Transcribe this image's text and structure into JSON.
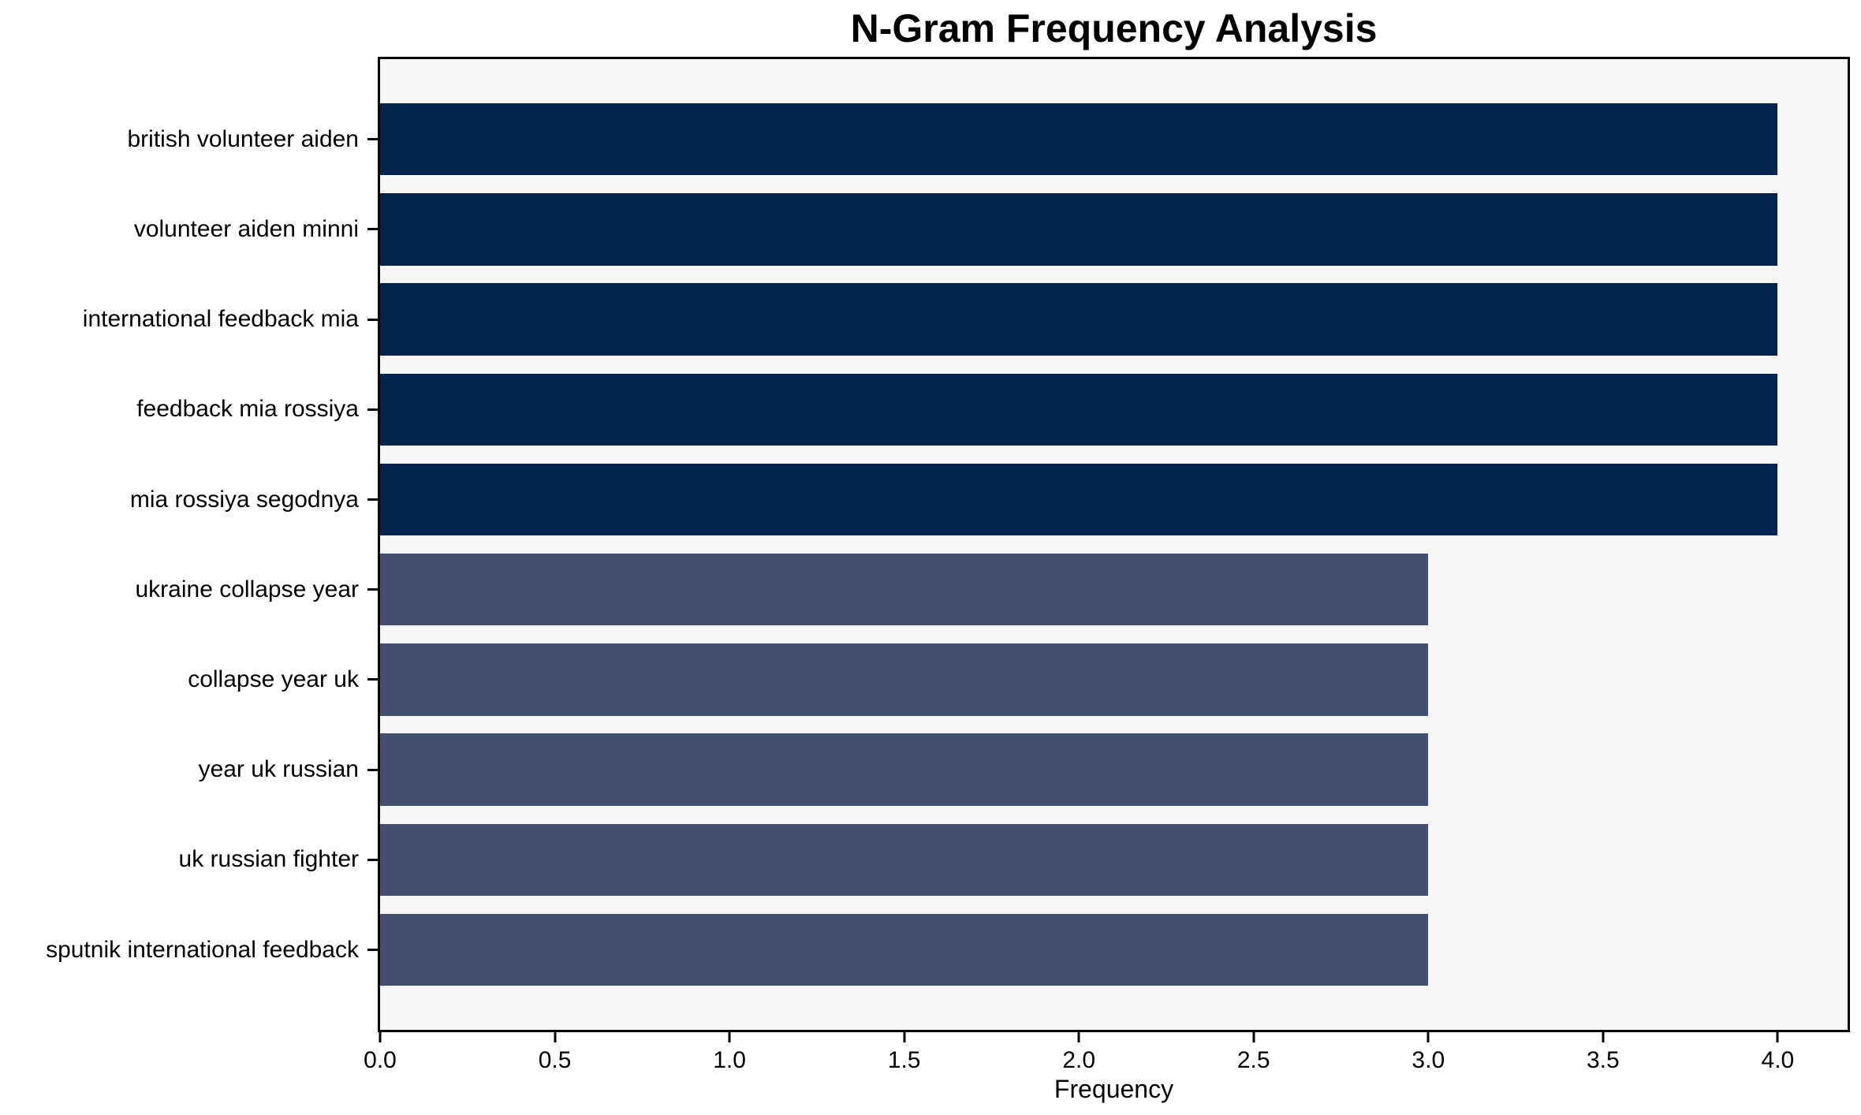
{
  "chart_data": {
    "type": "bar",
    "orientation": "horizontal",
    "title": "N-Gram Frequency Analysis",
    "xlabel": "Frequency",
    "ylabel": "",
    "categories": [
      "british volunteer aiden",
      "volunteer aiden minni",
      "international feedback mia",
      "feedback mia rossiya",
      "mia rossiya segodnya",
      "ukraine collapse year",
      "collapse year uk",
      "year uk russian",
      "uk russian fighter",
      "sputnik international feedback"
    ],
    "values": [
      4,
      4,
      4,
      4,
      4,
      3,
      3,
      3,
      3,
      3
    ],
    "bar_colors": [
      "#03254d",
      "#03254d",
      "#03254d",
      "#03254d",
      "#03254d",
      "#454f6e",
      "#454f6e",
      "#454f6e",
      "#454f6e",
      "#454f6e"
    ],
    "xlim": [
      0,
      4.2
    ],
    "xticks": [
      "0.0",
      "0.5",
      "1.0",
      "1.5",
      "2.0",
      "2.5",
      "3.0",
      "3.5",
      "4.0"
    ],
    "grid": false,
    "legend": null,
    "colors": {
      "bar_high": "#03254d",
      "bar_low": "#454f6e",
      "plot_background": "#f7f7f7",
      "figure_background": "#ffffff",
      "spine": "#000000",
      "text": "#000000"
    }
  }
}
